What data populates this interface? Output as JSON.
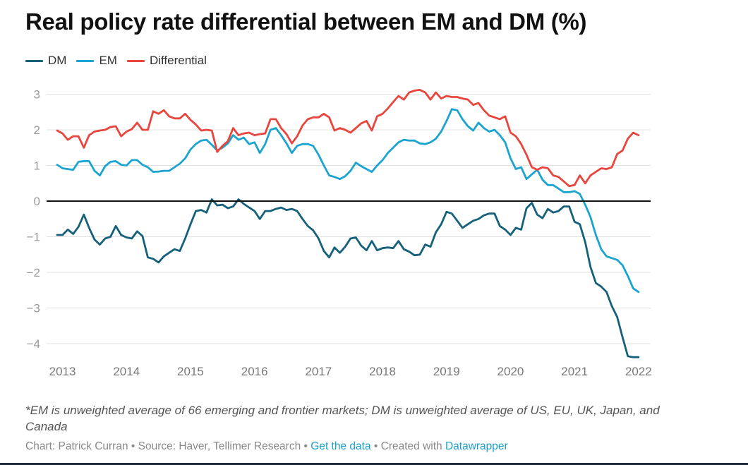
{
  "chart_data": {
    "type": "line",
    "title": "Real policy rate differential between EM and DM (%)",
    "xlabel": "",
    "ylabel": "",
    "x_start": "2012-12",
    "x_frequency": "monthly",
    "x_ticks": [
      "2013",
      "2014",
      "2015",
      "2016",
      "2017",
      "2018",
      "2019",
      "2020",
      "2021",
      "2022"
    ],
    "y_ticks": [
      "3",
      "2",
      "1",
      "0",
      "−4",
      "−3",
      "−2",
      "−1"
    ],
    "y_tick_values": [
      3,
      2,
      1,
      0,
      -4,
      -3,
      -2,
      -1
    ],
    "ylim": [
      -4.4,
      3.2
    ],
    "xlim": [
      "2012-12",
      "2022-01"
    ],
    "grid": true,
    "zero_line": true,
    "legend_position": "top-left",
    "series": [
      {
        "name": "DM",
        "color": "#15607a",
        "values": [
          -0.95,
          -0.95,
          -0.8,
          -0.92,
          -0.72,
          -0.38,
          -0.75,
          -1.08,
          -1.22,
          -1.05,
          -1.0,
          -0.7,
          -0.95,
          -1.02,
          -1.05,
          -0.85,
          -0.98,
          -1.58,
          -1.62,
          -1.72,
          -1.55,
          -1.45,
          -1.35,
          -1.4,
          -1.05,
          -0.65,
          -0.28,
          -0.25,
          -0.32,
          0.05,
          -0.12,
          -0.1,
          -0.2,
          -0.15,
          0.05,
          -0.08,
          -0.18,
          -0.28,
          -0.5,
          -0.28,
          -0.28,
          -0.22,
          -0.18,
          -0.25,
          -0.22,
          -0.28,
          -0.5,
          -0.7,
          -0.82,
          -1.05,
          -1.4,
          -1.58,
          -1.3,
          -1.45,
          -1.28,
          -1.05,
          -1.02,
          -1.25,
          -1.38,
          -1.12,
          -1.38,
          -1.32,
          -1.3,
          -1.32,
          -1.12,
          -1.35,
          -1.42,
          -1.52,
          -1.5,
          -1.22,
          -1.28,
          -0.88,
          -0.65,
          -0.3,
          -0.35,
          -0.55,
          -0.75,
          -0.65,
          -0.55,
          -0.5,
          -0.4,
          -0.35,
          -0.35,
          -0.7,
          -0.8,
          -0.95,
          -0.75,
          -0.8,
          -0.2,
          -0.05,
          -0.38,
          -0.48,
          -0.22,
          -0.32,
          -0.28,
          -0.15,
          -0.15,
          -0.58,
          -0.65,
          -1.15,
          -1.85,
          -2.3,
          -2.4,
          -2.55,
          -2.95,
          -3.25,
          -3.82,
          -4.35,
          -4.38,
          -4.38
        ]
      },
      {
        "name": "EM",
        "color": "#1ca4d1",
        "values": [
          1.02,
          0.92,
          0.9,
          0.88,
          1.1,
          1.12,
          1.12,
          0.85,
          0.72,
          0.98,
          1.1,
          1.12,
          1.02,
          1.0,
          1.15,
          1.15,
          1.02,
          0.95,
          0.82,
          0.83,
          0.85,
          0.85,
          0.95,
          1.05,
          1.2,
          1.45,
          1.6,
          1.7,
          1.72,
          1.58,
          1.42,
          1.5,
          1.62,
          1.85,
          1.72,
          1.78,
          1.6,
          1.65,
          1.35,
          1.6,
          2.0,
          2.05,
          1.85,
          1.62,
          1.35,
          1.55,
          1.6,
          1.6,
          1.55,
          1.3,
          1.0,
          0.72,
          0.68,
          0.62,
          0.7,
          0.85,
          1.08,
          0.98,
          0.9,
          0.82,
          1.0,
          1.15,
          1.35,
          1.5,
          1.65,
          1.72,
          1.7,
          1.7,
          1.62,
          1.6,
          1.65,
          1.75,
          1.95,
          2.25,
          2.58,
          2.55,
          2.3,
          2.1,
          1.98,
          2.2,
          2.05,
          1.95,
          2.0,
          1.85,
          1.65,
          1.2,
          0.9,
          0.95,
          0.62,
          0.75,
          0.88,
          0.6,
          0.45,
          0.45,
          0.35,
          0.25,
          0.25,
          0.28,
          0.2,
          -0.1,
          -0.45,
          -0.95,
          -1.35,
          -1.55,
          -1.6,
          -1.65,
          -1.8,
          -2.1,
          -2.45,
          -2.55
        ]
      },
      {
        "name": "Differential",
        "color": "#e8453c",
        "values": [
          1.98,
          1.9,
          1.72,
          1.82,
          1.82,
          1.5,
          1.85,
          1.95,
          1.98,
          2.0,
          2.08,
          2.1,
          1.82,
          1.95,
          2.02,
          2.2,
          2.0,
          2.0,
          2.52,
          2.45,
          2.55,
          2.38,
          2.32,
          2.32,
          2.45,
          2.28,
          2.15,
          1.98,
          2.0,
          1.98,
          1.38,
          1.55,
          1.68,
          2.05,
          1.85,
          1.9,
          1.92,
          1.85,
          1.88,
          1.9,
          2.3,
          2.3,
          2.05,
          1.88,
          1.62,
          1.82,
          2.12,
          2.3,
          2.35,
          2.35,
          2.45,
          2.35,
          1.98,
          2.05,
          2.0,
          1.92,
          2.05,
          2.18,
          2.25,
          1.98,
          2.38,
          2.45,
          2.6,
          2.78,
          2.95,
          2.85,
          3.05,
          3.1,
          3.12,
          3.05,
          2.85,
          3.05,
          2.88,
          2.95,
          2.92,
          2.92,
          2.88,
          2.85,
          2.7,
          2.75,
          2.55,
          2.4,
          2.35,
          2.3,
          2.38,
          1.92,
          1.82,
          1.6,
          1.3,
          0.95,
          0.88,
          0.95,
          0.92,
          0.72,
          0.68,
          0.55,
          0.42,
          0.45,
          0.72,
          0.5,
          0.72,
          0.82,
          0.92,
          0.9,
          0.95,
          1.32,
          1.42,
          1.75,
          1.92,
          1.85
        ]
      }
    ]
  },
  "legend": {
    "items": [
      {
        "label": "DM",
        "color": "#15607a"
      },
      {
        "label": "EM",
        "color": "#1ca4d1"
      },
      {
        "label": "Differential",
        "color": "#e8453c"
      }
    ]
  },
  "notes": "*EM is unweighted average of 66 emerging and frontier markets; DM is unweighted average of US, EU, UK, Japan, and Canada",
  "footer": {
    "credit": "Chart: Patrick Curran",
    "sep1": " • ",
    "source": "Source: Haver, Tellimer Research",
    "sep2": " • ",
    "get_data": "Get the data",
    "sep3": " • ",
    "created_with": "Created with ",
    "tool": "Datawrapper"
  }
}
